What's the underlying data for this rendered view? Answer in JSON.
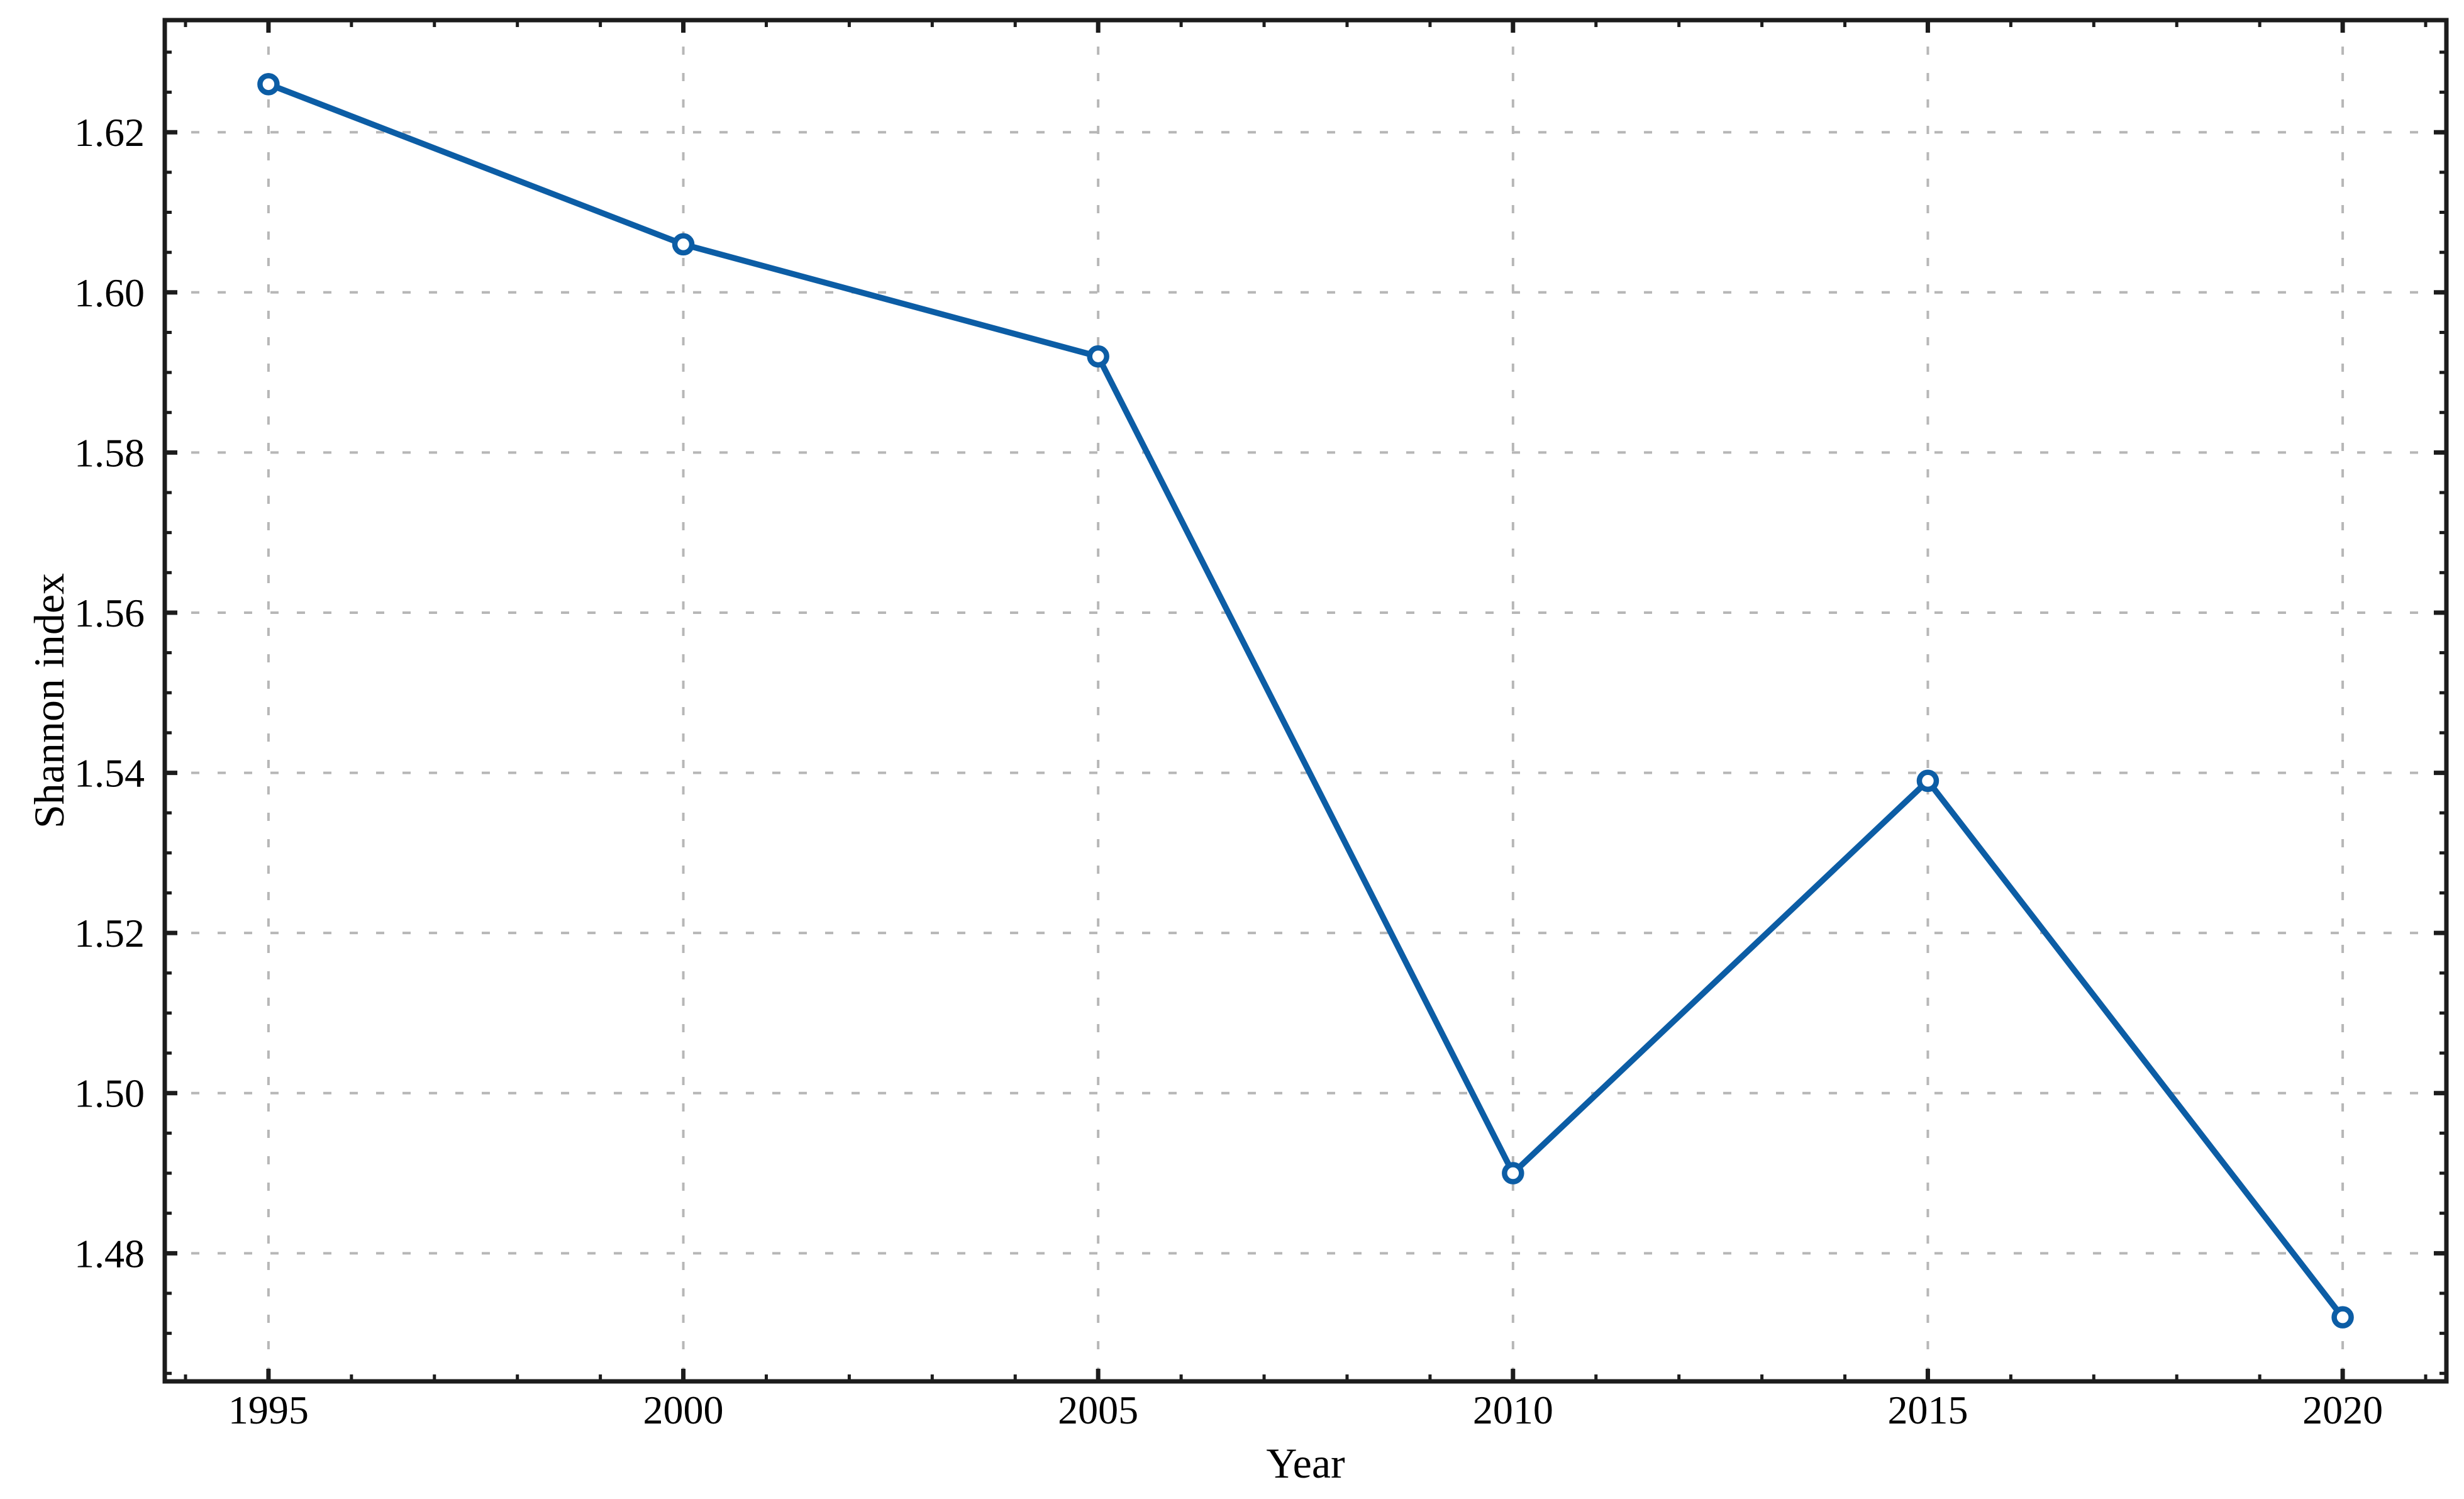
{
  "chart_data": {
    "type": "line",
    "title": "",
    "xlabel": "Year",
    "ylabel": "Shannon index",
    "series_name": "Shannon index",
    "x": [
      1995,
      2000,
      2005,
      2010,
      2015,
      2020
    ],
    "y": [
      1.626,
      1.606,
      1.592,
      1.49,
      1.539,
      1.472
    ],
    "xlim": [
      1993.75,
      2021.25
    ],
    "ylim": [
      1.464,
      1.634
    ],
    "x_ticks": {
      "values": [
        1995,
        2000,
        2005,
        2010,
        2015,
        2020
      ],
      "labels": [
        "1995",
        "2000",
        "2005",
        "2010",
        "2015",
        "2020"
      ]
    },
    "y_ticks": {
      "values": [
        1.48,
        1.5,
        1.52,
        1.54,
        1.56,
        1.58,
        1.6,
        1.62
      ],
      "labels": [
        "1.48",
        "1.50",
        "1.52",
        "1.54",
        "1.56",
        "1.58",
        "1.60",
        "1.62"
      ]
    },
    "x_minor_step": 1,
    "y_minor_step": 0.005,
    "grid": {
      "show": true,
      "which": "major",
      "axis": "both",
      "style": "dashed"
    },
    "legend": {
      "show": false
    },
    "marker": "circle-open",
    "colors": {
      "line": "#0C5DA5",
      "marker_fill": "#ffffff",
      "grid": "#b7b7b7",
      "spine": "#1c1c1c",
      "text": "#000000",
      "background": "#ffffff"
    }
  }
}
